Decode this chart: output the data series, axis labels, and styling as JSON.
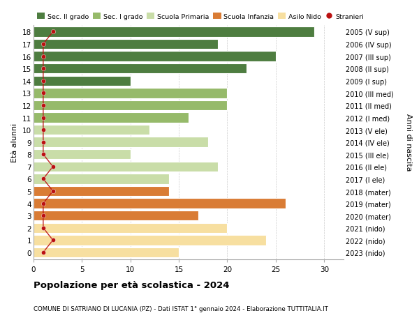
{
  "ages": [
    0,
    1,
    2,
    3,
    4,
    5,
    6,
    7,
    8,
    9,
    10,
    11,
    12,
    13,
    14,
    15,
    16,
    17,
    18
  ],
  "right_labels": [
    "2023 (nido)",
    "2022 (nido)",
    "2021 (nido)",
    "2020 (mater)",
    "2019 (mater)",
    "2018 (mater)",
    "2017 (I ele)",
    "2016 (II ele)",
    "2015 (III ele)",
    "2014 (IV ele)",
    "2013 (V ele)",
    "2012 (I med)",
    "2011 (II med)",
    "2010 (III med)",
    "2009 (I sup)",
    "2008 (II sup)",
    "2007 (III sup)",
    "2006 (IV sup)",
    "2005 (V sup)"
  ],
  "bar_values": [
    15,
    24,
    20,
    17,
    26,
    14,
    14,
    19,
    10,
    18,
    12,
    16,
    20,
    20,
    10,
    22,
    25,
    19,
    29
  ],
  "bar_colors": [
    "#f7dfa0",
    "#f7dfa0",
    "#f7dfa0",
    "#d97c35",
    "#d97c35",
    "#d97c35",
    "#c9dda8",
    "#c9dda8",
    "#c9dda8",
    "#c9dda8",
    "#c9dda8",
    "#96ba6a",
    "#96ba6a",
    "#96ba6a",
    "#4e7d40",
    "#4e7d40",
    "#4e7d40",
    "#4e7d40",
    "#4e7d40"
  ],
  "stranieri_values": [
    1,
    2,
    1,
    1,
    1,
    2,
    1,
    2,
    1,
    1,
    1,
    1,
    1,
    1,
    1,
    1,
    1,
    1,
    2
  ],
  "legend_labels": [
    "Sec. II grado",
    "Sec. I grado",
    "Scuola Primaria",
    "Scuola Infanzia",
    "Asilo Nido",
    "Stranieri"
  ],
  "legend_colors": [
    "#4e7d40",
    "#96ba6a",
    "#c9dda8",
    "#d97c35",
    "#f7dfa0",
    "#bb1111"
  ],
  "title": "Popolazione per età scolastica - 2024",
  "subtitle": "COMUNE DI SATRIANO DI LUCANIA (PZ) - Dati ISTAT 1° gennaio 2024 - Elaborazione TUTTITALIA.IT",
  "ylabel_left": "Età alunni",
  "ylabel_right": "Anni di nascita",
  "xlim": [
    0,
    32
  ],
  "xticks": [
    0,
    5,
    10,
    15,
    20,
    25,
    30
  ],
  "bg_color": "#ffffff",
  "bar_height": 0.82,
  "stranieri_color": "#bb1111"
}
